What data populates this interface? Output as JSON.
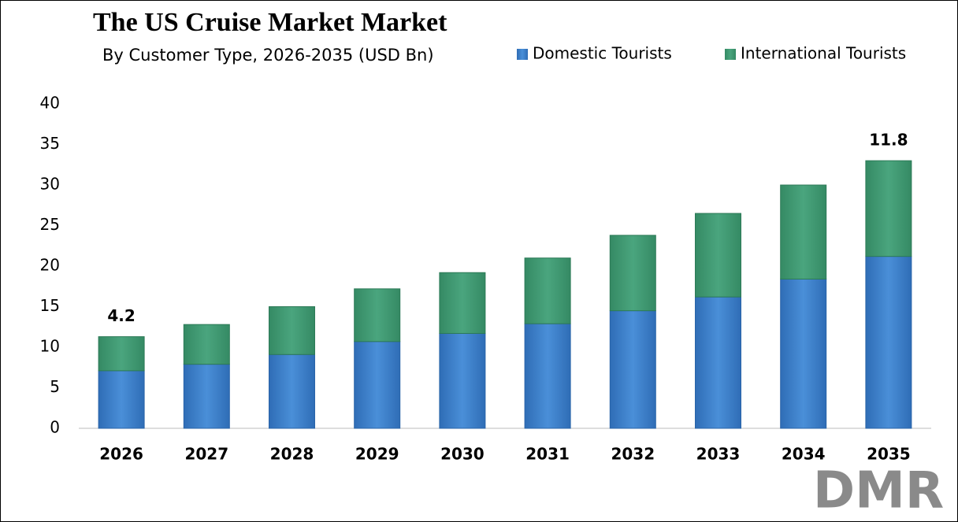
{
  "chart_data": {
    "type": "stacked_bar",
    "title": "The US Cruise Market Market",
    "subtitle": "By Customer Type, 2026-2035 (USD Bn)",
    "categories": [
      "2026",
      "2027",
      "2028",
      "2029",
      "2030",
      "2031",
      "2032",
      "2033",
      "2034",
      "2035"
    ],
    "series": [
      {
        "name": "Domestic Tourists",
        "color": "#3b7dc9",
        "values": [
          7.1,
          7.9,
          9.1,
          10.7,
          11.7,
          12.9,
          14.5,
          16.2,
          18.4,
          21.2
        ]
      },
      {
        "name": "International Tourists",
        "color": "#3f9a73",
        "values": [
          4.2,
          4.9,
          5.9,
          6.5,
          7.5,
          8.1,
          9.3,
          10.3,
          11.6,
          11.8
        ],
        "value_labels": [
          "4.2",
          null,
          null,
          null,
          null,
          null,
          null,
          null,
          null,
          "11.8"
        ]
      }
    ],
    "ylim": [
      0,
      40
    ],
    "yticks": [
      0,
      5,
      10,
      15,
      20,
      25,
      30,
      35,
      40
    ],
    "grid": false,
    "legend": "top-right",
    "logo": "DMR"
  }
}
